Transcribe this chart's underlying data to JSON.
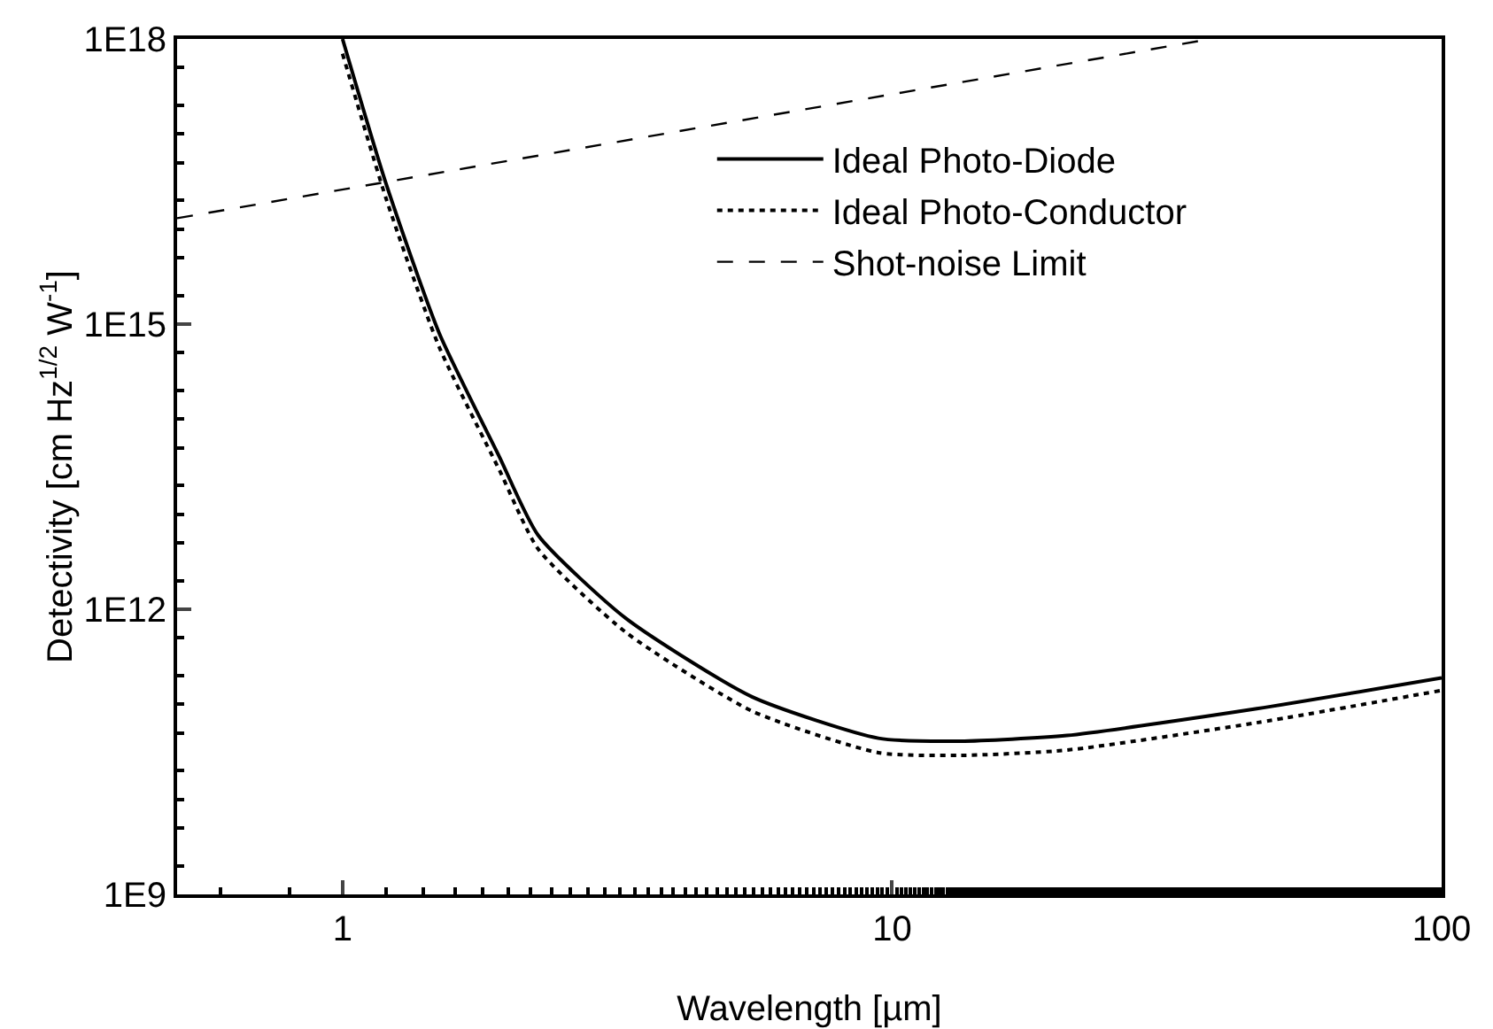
{
  "chart_data": {
    "type": "line",
    "xlabel": "Wavelength [µm]",
    "ylabel": "Detectivity [cm Hz$^{1/2}$ W$^{-1}$]",
    "log": "xy",
    "xlim": [
      0.5,
      100
    ],
    "xticks": [
      1,
      10,
      100
    ],
    "ylim": [
      1000000000.0,
      1e+18
    ],
    "yticks": [
      {
        "value": 1000000000.0,
        "label": "1E9"
      },
      {
        "value": 1000000000000.0,
        "label": "1E12"
      },
      {
        "value": 1000000000000000.0,
        "label": "1E15"
      },
      {
        "value": 1e+18,
        "label": "1E18"
      }
    ],
    "grid": false,
    "legend": "top",
    "marker": "none",
    "series": [
      {
        "name": "Ideal Photo-Diode",
        "color": "#000000",
        "line_style": "solid",
        "x": [
          1,
          1.2,
          1.5,
          1.93,
          2.27,
          3.28,
          5.56,
          9.44,
          13.3,
          20.8,
          46.1,
          100
        ],
        "values": [
          1e+18,
          3e+16,
          800000000000000.0,
          40000000000000.0,
          6000000000000.0,
          800000000000.0,
          120000000000.0,
          44000000000.0,
          41000000000.0,
          47000000000.0,
          90000000000.0,
          190000000000.0
        ]
      },
      {
        "name": "Ideal Photo-Conductor",
        "color": "#000000",
        "line_style": "dotted",
        "x": [
          1,
          1.2,
          1.5,
          1.93,
          2.27,
          3.28,
          5.56,
          9.44,
          13.3,
          20.8,
          46.1,
          100
        ],
        "values": [
          7e+17,
          2.1e+16,
          570000000000000.0,
          29000000000000.0,
          4300000000000.0,
          570000000000.0,
          85000000000.0,
          31000000000.0,
          29000000000.0,
          33000000000.0,
          64000000000.0,
          140000000000.0
        ]
      },
      {
        "name": "Shot-noise Limit",
        "color": "#000000",
        "line_style": "dashed",
        "x": [
          0.5,
          38
        ],
        "values": [
          1.3e+16,
          1e+18
        ]
      }
    ]
  }
}
